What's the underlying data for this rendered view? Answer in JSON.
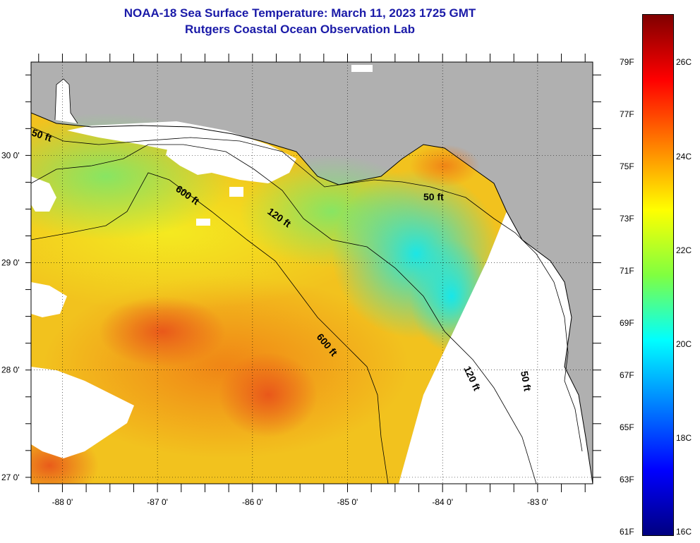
{
  "title": {
    "line1": "NOAA-18 Sea Surface Temperature:  March 11, 2023 1725 GMT",
    "line2": "Rutgers Coastal Ocean Observation Lab"
  },
  "map": {
    "lon_range": [
      -88.33,
      -82.42
    ],
    "lat_range": [
      26.94,
      30.87
    ],
    "lon_ticks": [
      {
        "value": -88,
        "label": "-88 0'"
      },
      {
        "value": -87,
        "label": "-87 0'"
      },
      {
        "value": -86,
        "label": "-86 0'"
      },
      {
        "value": -85,
        "label": "-85 0'"
      },
      {
        "value": -84,
        "label": "-84 0'"
      },
      {
        "value": -83,
        "label": "-83 0'"
      }
    ],
    "lat_ticks": [
      {
        "value": 30,
        "label": "30 0'"
      },
      {
        "value": 29,
        "label": "29 0'"
      },
      {
        "value": 28,
        "label": "28 0'"
      },
      {
        "value": 27,
        "label": "27 0'"
      }
    ],
    "depth_labels": [
      "50 ft",
      "600 ft",
      "120 ft",
      "50 ft",
      "600 ft",
      "120 ft",
      "50 ft"
    ],
    "colors": {
      "land": "#b0b0b0",
      "cloud": "#ffffff",
      "contour": "#000000"
    }
  },
  "colorbar": {
    "fahrenheit": [
      "79F",
      "77F",
      "75F",
      "73F",
      "71F",
      "69F",
      "67F",
      "65F",
      "63F",
      "61F"
    ],
    "celsius": [
      "26C",
      "24C",
      "22C",
      "20C",
      "18C",
      "16C"
    ],
    "colors": [
      "#800000",
      "#ff0000",
      "#ff8000",
      "#ffff00",
      "#80ff40",
      "#00ffff",
      "#0080ff",
      "#0000ff",
      "#000080"
    ]
  }
}
